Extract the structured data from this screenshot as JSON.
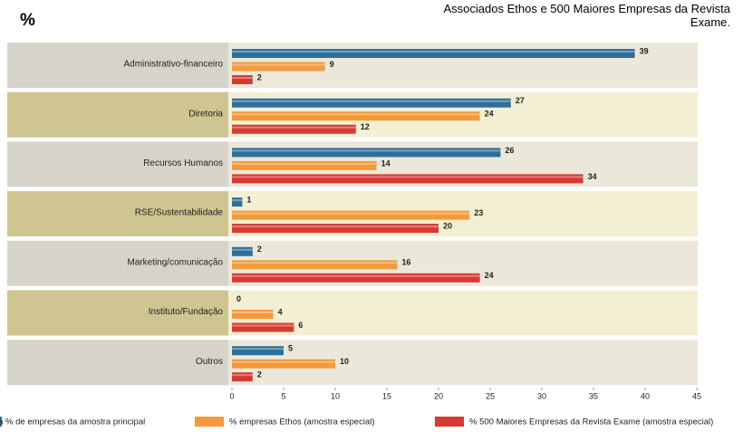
{
  "chart_data": {
    "type": "bar",
    "orientation": "horizontal",
    "title": "%",
    "subtitle": "Associados Ethos e 500 Maiores Empresas da Revista Exame.",
    "categories": [
      "Administrativo-financeiro",
      "Diretoria",
      "Recursos Humanos",
      "RSE/Sustentabilidade",
      "Marketing/comunicação",
      "Instituto/Fundação",
      "Outros"
    ],
    "series": [
      {
        "name": "ia % de empresas da amostra principal",
        "color": "#2e6f9c",
        "values": [
          39,
          27,
          26,
          1,
          2,
          0,
          5
        ]
      },
      {
        "name": "% empresas Ethos (amostra especial)",
        "color": "#f39a3c",
        "values": [
          9,
          24,
          14,
          23,
          16,
          4,
          10
        ]
      },
      {
        "name": "% 500 Maiores Empresas da Revista Exame (amostra especial)",
        "color": "#d63b33",
        "values": [
          2,
          12,
          34,
          20,
          24,
          6,
          2
        ]
      }
    ],
    "xlim": [
      0,
      45
    ],
    "xticks": [
      0,
      5,
      10,
      15,
      20,
      25,
      30,
      35,
      40,
      45
    ]
  }
}
